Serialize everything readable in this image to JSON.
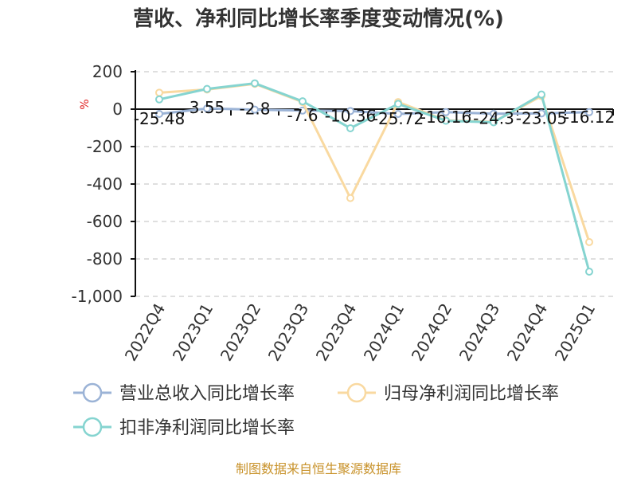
{
  "title": "营收、净利同比增长率季度变动情况(%)",
  "unit_label": "%",
  "source": "制图数据来自恒生聚源数据库",
  "colors": {
    "revenue": "#9bb3d6",
    "net_profit": "#f9d9a0",
    "deducted_profit": "#85d4d0"
  },
  "chart_data": {
    "type": "line",
    "categories": [
      "2022Q4",
      "2023Q1",
      "2023Q2",
      "2023Q3",
      "2023Q4",
      "2024Q1",
      "2024Q2",
      "2024Q3",
      "2024Q4",
      "2025Q1"
    ],
    "ylim": [
      -1000,
      200
    ],
    "yticks": [
      200,
      0,
      -200,
      -400,
      -600,
      -800,
      -1000
    ],
    "ytick_labels": [
      "200",
      "0",
      "-200",
      "-400",
      "-600",
      "-800",
      "-1,000"
    ],
    "grid": true,
    "legend_position": "bottom",
    "series": [
      {
        "name": "营业总收入同比增长率",
        "color_key": "revenue",
        "values": [
          -25.48,
          3.55,
          -2.8,
          -7.6,
          -10.36,
          -25.72,
          -16.16,
          -24.3,
          -23.05,
          -16.12
        ]
      },
      {
        "name": "归母净利润同比增长率",
        "color_key": "net_profit",
        "values": [
          88,
          105,
          135,
          38,
          -475,
          38,
          -60,
          -68,
          70,
          -710
        ]
      },
      {
        "name": "扣非净利润同比增长率",
        "color_key": "deducted_profit",
        "values": [
          52,
          108,
          138,
          42,
          -102,
          28,
          -62,
          -70,
          78,
          -868
        ]
      }
    ],
    "data_labels": [
      "-25.48",
      "3.55",
      "-2.8",
      "-7.6",
      "-10.36",
      "-25.72",
      "-16.16",
      "-24.3",
      "-23.05",
      "-16.12"
    ]
  }
}
